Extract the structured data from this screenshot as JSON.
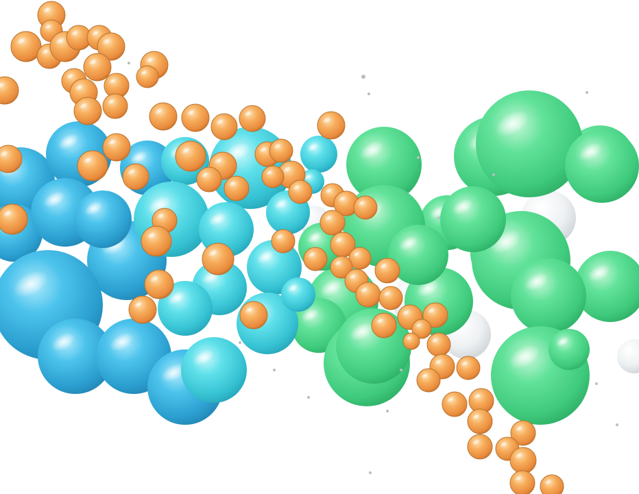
{
  "image": {
    "subject": "3d-sphere-cluster-render",
    "background_color": "#ffffff",
    "palette": {
      "blue": "#33b5e5",
      "cyan": "#4ad8e6",
      "green": "#4fdc8e",
      "orange": "#f5a04a",
      "white": "#f4f6f7",
      "dust": "#b8bec2"
    }
  }
}
